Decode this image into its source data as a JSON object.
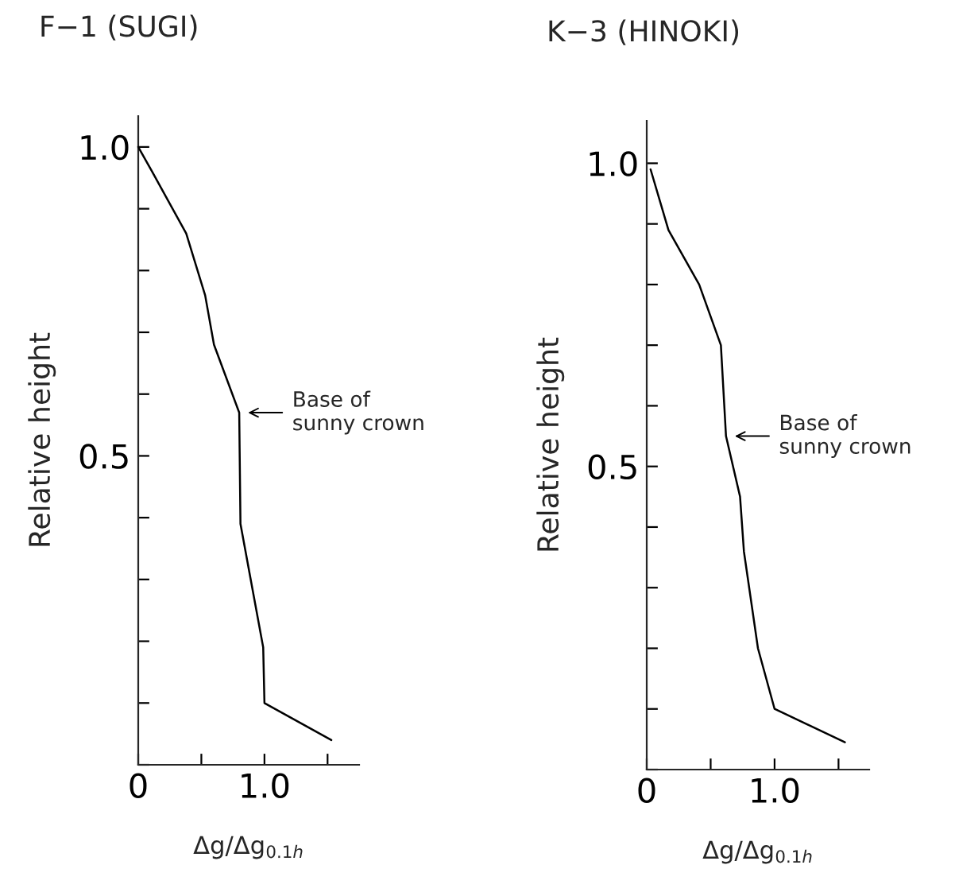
{
  "chart_data": [
    {
      "type": "line",
      "title": "F−1 (SUGI)",
      "xlabel": "Δg/Δg$_{0.1h}$",
      "ylabel": "Relative height",
      "x": [
        0.0,
        0.11,
        0.38,
        0.53,
        0.6,
        0.8,
        0.81,
        0.99,
        1.0,
        1.53
      ],
      "series": [
        {
          "color": "#000000",
          "values": [
            1.0,
            0.96,
            0.86,
            0.76,
            0.68,
            0.57,
            0.39,
            0.19,
            0.1,
            0.04
          ]
        }
      ],
      "xlim": [
        0,
        1.75
      ],
      "ylim": [
        0,
        1.05
      ],
      "xticks": [
        {
          "value": 0,
          "label": "0"
        },
        {
          "value": 0.5,
          "label": null
        },
        {
          "value": 1.0,
          "label": "1.0"
        },
        {
          "value": 1.5,
          "label": null
        }
      ],
      "yticks": [
        {
          "value": 0,
          "label": null
        },
        {
          "value": 0.1,
          "label": null
        },
        {
          "value": 0.2,
          "label": null
        },
        {
          "value": 0.3,
          "label": null
        },
        {
          "value": 0.4,
          "label": null
        },
        {
          "value": 0.5,
          "label": "0.5"
        },
        {
          "value": 0.6,
          "label": null
        },
        {
          "value": 0.7,
          "label": null
        },
        {
          "value": 0.8,
          "label": null
        },
        {
          "value": 0.9,
          "label": null
        },
        {
          "value": 1.0,
          "label": "1.0"
        }
      ],
      "annotations": [
        {
          "text": "Base of\nsunny crown",
          "x": 0.8,
          "y": 0.57
        }
      ],
      "grid": false,
      "marker": "none",
      "line_style": "solid"
    },
    {
      "type": "line",
      "title": "K−3 (HINOKI)",
      "xlabel": "Δg/Δg$_{0.1h}$",
      "ylabel": "Relative height",
      "x": [
        0.03,
        0.17,
        0.41,
        0.58,
        0.62,
        0.73,
        0.76,
        0.87,
        1.0,
        1.55
      ],
      "series": [
        {
          "color": "#000000",
          "values": [
            0.99,
            0.89,
            0.8,
            0.7,
            0.55,
            0.45,
            0.36,
            0.2,
            0.1,
            0.045
          ]
        }
      ],
      "xlim": [
        0,
        1.74
      ],
      "ylim": [
        0,
        1.07
      ],
      "xticks": [
        {
          "value": 0,
          "label": "0"
        },
        {
          "value": 0.5,
          "label": null
        },
        {
          "value": 1.0,
          "label": "1.0"
        },
        {
          "value": 1.5,
          "label": null
        }
      ],
      "yticks": [
        {
          "value": 0,
          "label": null
        },
        {
          "value": 0.1,
          "label": null
        },
        {
          "value": 0.2,
          "label": null
        },
        {
          "value": 0.3,
          "label": null
        },
        {
          "value": 0.4,
          "label": null
        },
        {
          "value": 0.5,
          "label": "0.5"
        },
        {
          "value": 0.6,
          "label": null
        },
        {
          "value": 0.7,
          "label": null
        },
        {
          "value": 0.8,
          "label": null
        },
        {
          "value": 0.9,
          "label": null
        },
        {
          "value": 1.0,
          "label": "1.0"
        }
      ],
      "annotations": [
        {
          "text": "Base of\nsunny crown",
          "x": 0.62,
          "y": 0.55
        }
      ],
      "grid": false,
      "marker": "none",
      "line_style": "solid"
    }
  ]
}
